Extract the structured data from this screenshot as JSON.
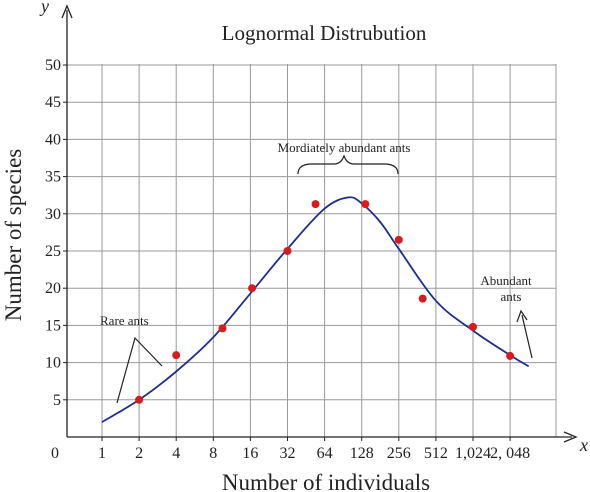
{
  "chart_data": {
    "type": "scatter",
    "title": "Lognormal Distrubution",
    "xlabel": "Number of individuals",
    "ylabel": "Number of species",
    "x_axis_letter": "x",
    "y_axis_letter": "y",
    "origin_label": "0",
    "x_scale": "log2",
    "x_ticks": [
      "1",
      "2",
      "4",
      "8",
      "16",
      "32",
      "64",
      "128",
      "256",
      "512",
      "1,024",
      "2, 048"
    ],
    "y_ticks": [
      "5",
      "10",
      "15",
      "20",
      "25",
      "30",
      "35",
      "40",
      "45",
      "50"
    ],
    "ylim": [
      0,
      50
    ],
    "grid": true,
    "points": [
      {
        "x": 2,
        "y": 5
      },
      {
        "x": 4,
        "y": 11
      },
      {
        "x": 9.5,
        "y": 14.6
      },
      {
        "x": 16.5,
        "y": 20
      },
      {
        "x": 32,
        "y": 25
      },
      {
        "x": 54,
        "y": 31.3
      },
      {
        "x": 137,
        "y": 31.3
      },
      {
        "x": 256,
        "y": 26.5
      },
      {
        "x": 400,
        "y": 18.6
      },
      {
        "x": 1024,
        "y": 14.8
      },
      {
        "x": 2048,
        "y": 10.9
      }
    ],
    "curve": {
      "x": [
        1,
        2,
        4,
        8,
        16,
        32,
        64,
        100,
        128,
        181,
        256,
        512,
        1024,
        2048,
        2900
      ],
      "y": [
        2,
        5,
        8.8,
        13.4,
        19.3,
        25.3,
        30.7,
        32.2,
        31.4,
        28.9,
        25.3,
        18.3,
        14.3,
        11,
        9.5
      ]
    },
    "annotations": {
      "rare": "Rare ants",
      "moderate": "Mordiately abundant ants",
      "abundant_line1": "Abundant",
      "abundant_line2": "ants"
    },
    "colors": {
      "curve": "#1f2f8f",
      "points": "#d81b1b",
      "grid": "#9a9a9a",
      "axis": "#222222"
    }
  }
}
